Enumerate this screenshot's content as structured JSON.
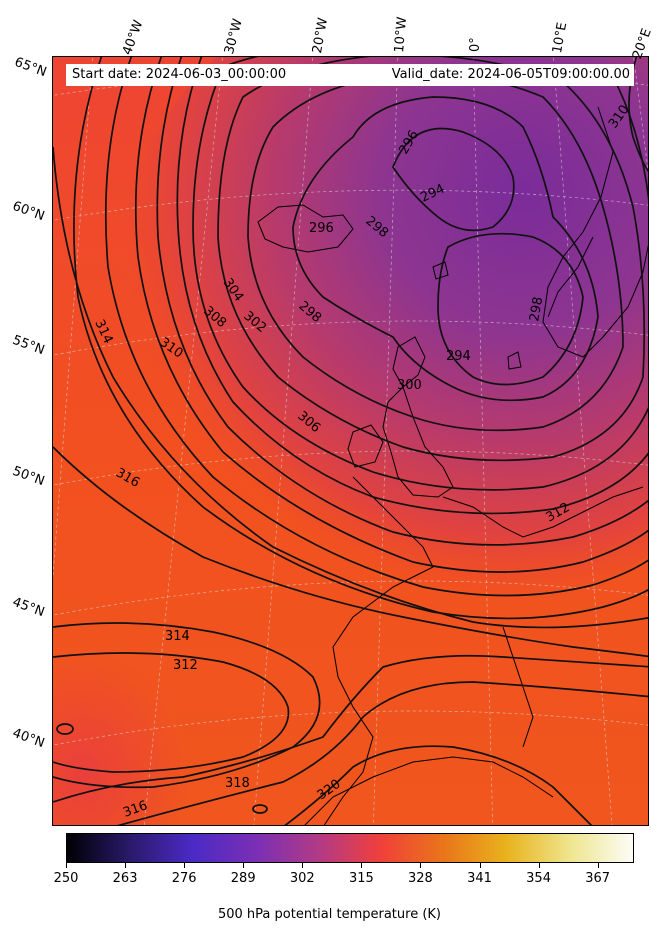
{
  "info": {
    "start_date": "Start date: 2024-06-03_00:00:00",
    "valid_date": "Valid_date: 2024-06-05T09:00:00.00"
  },
  "longitude_labels": [
    "40°W",
    "30°W",
    "20°W",
    "10°W",
    "0°",
    "10°E",
    "20°E"
  ],
  "latitude_labels": [
    "65°N",
    "60°N",
    "55°N",
    "50°N",
    "45°N",
    "40°N"
  ],
  "contour_labels": [
    "296",
    "294",
    "296",
    "298",
    "298",
    "304",
    "302",
    "308",
    "310",
    "314",
    "306",
    "316",
    "294",
    "300",
    "298",
    "312",
    "314",
    "312",
    "318",
    "320",
    "316",
    "310"
  ],
  "colorbar": {
    "min": 250,
    "max": 375,
    "ticks": [
      "250",
      "263",
      "276",
      "289",
      "302",
      "315",
      "328",
      "341",
      "354",
      "367"
    ],
    "label": "500 hPa potential temperature (K)",
    "colors": [
      "#000004",
      "#2a1a6a",
      "#4b2ac6",
      "#7a2fb5",
      "#b23a86",
      "#f1403a",
      "#e9761a",
      "#e9b31e",
      "#efe58e",
      "#fcfdf7"
    ]
  }
}
